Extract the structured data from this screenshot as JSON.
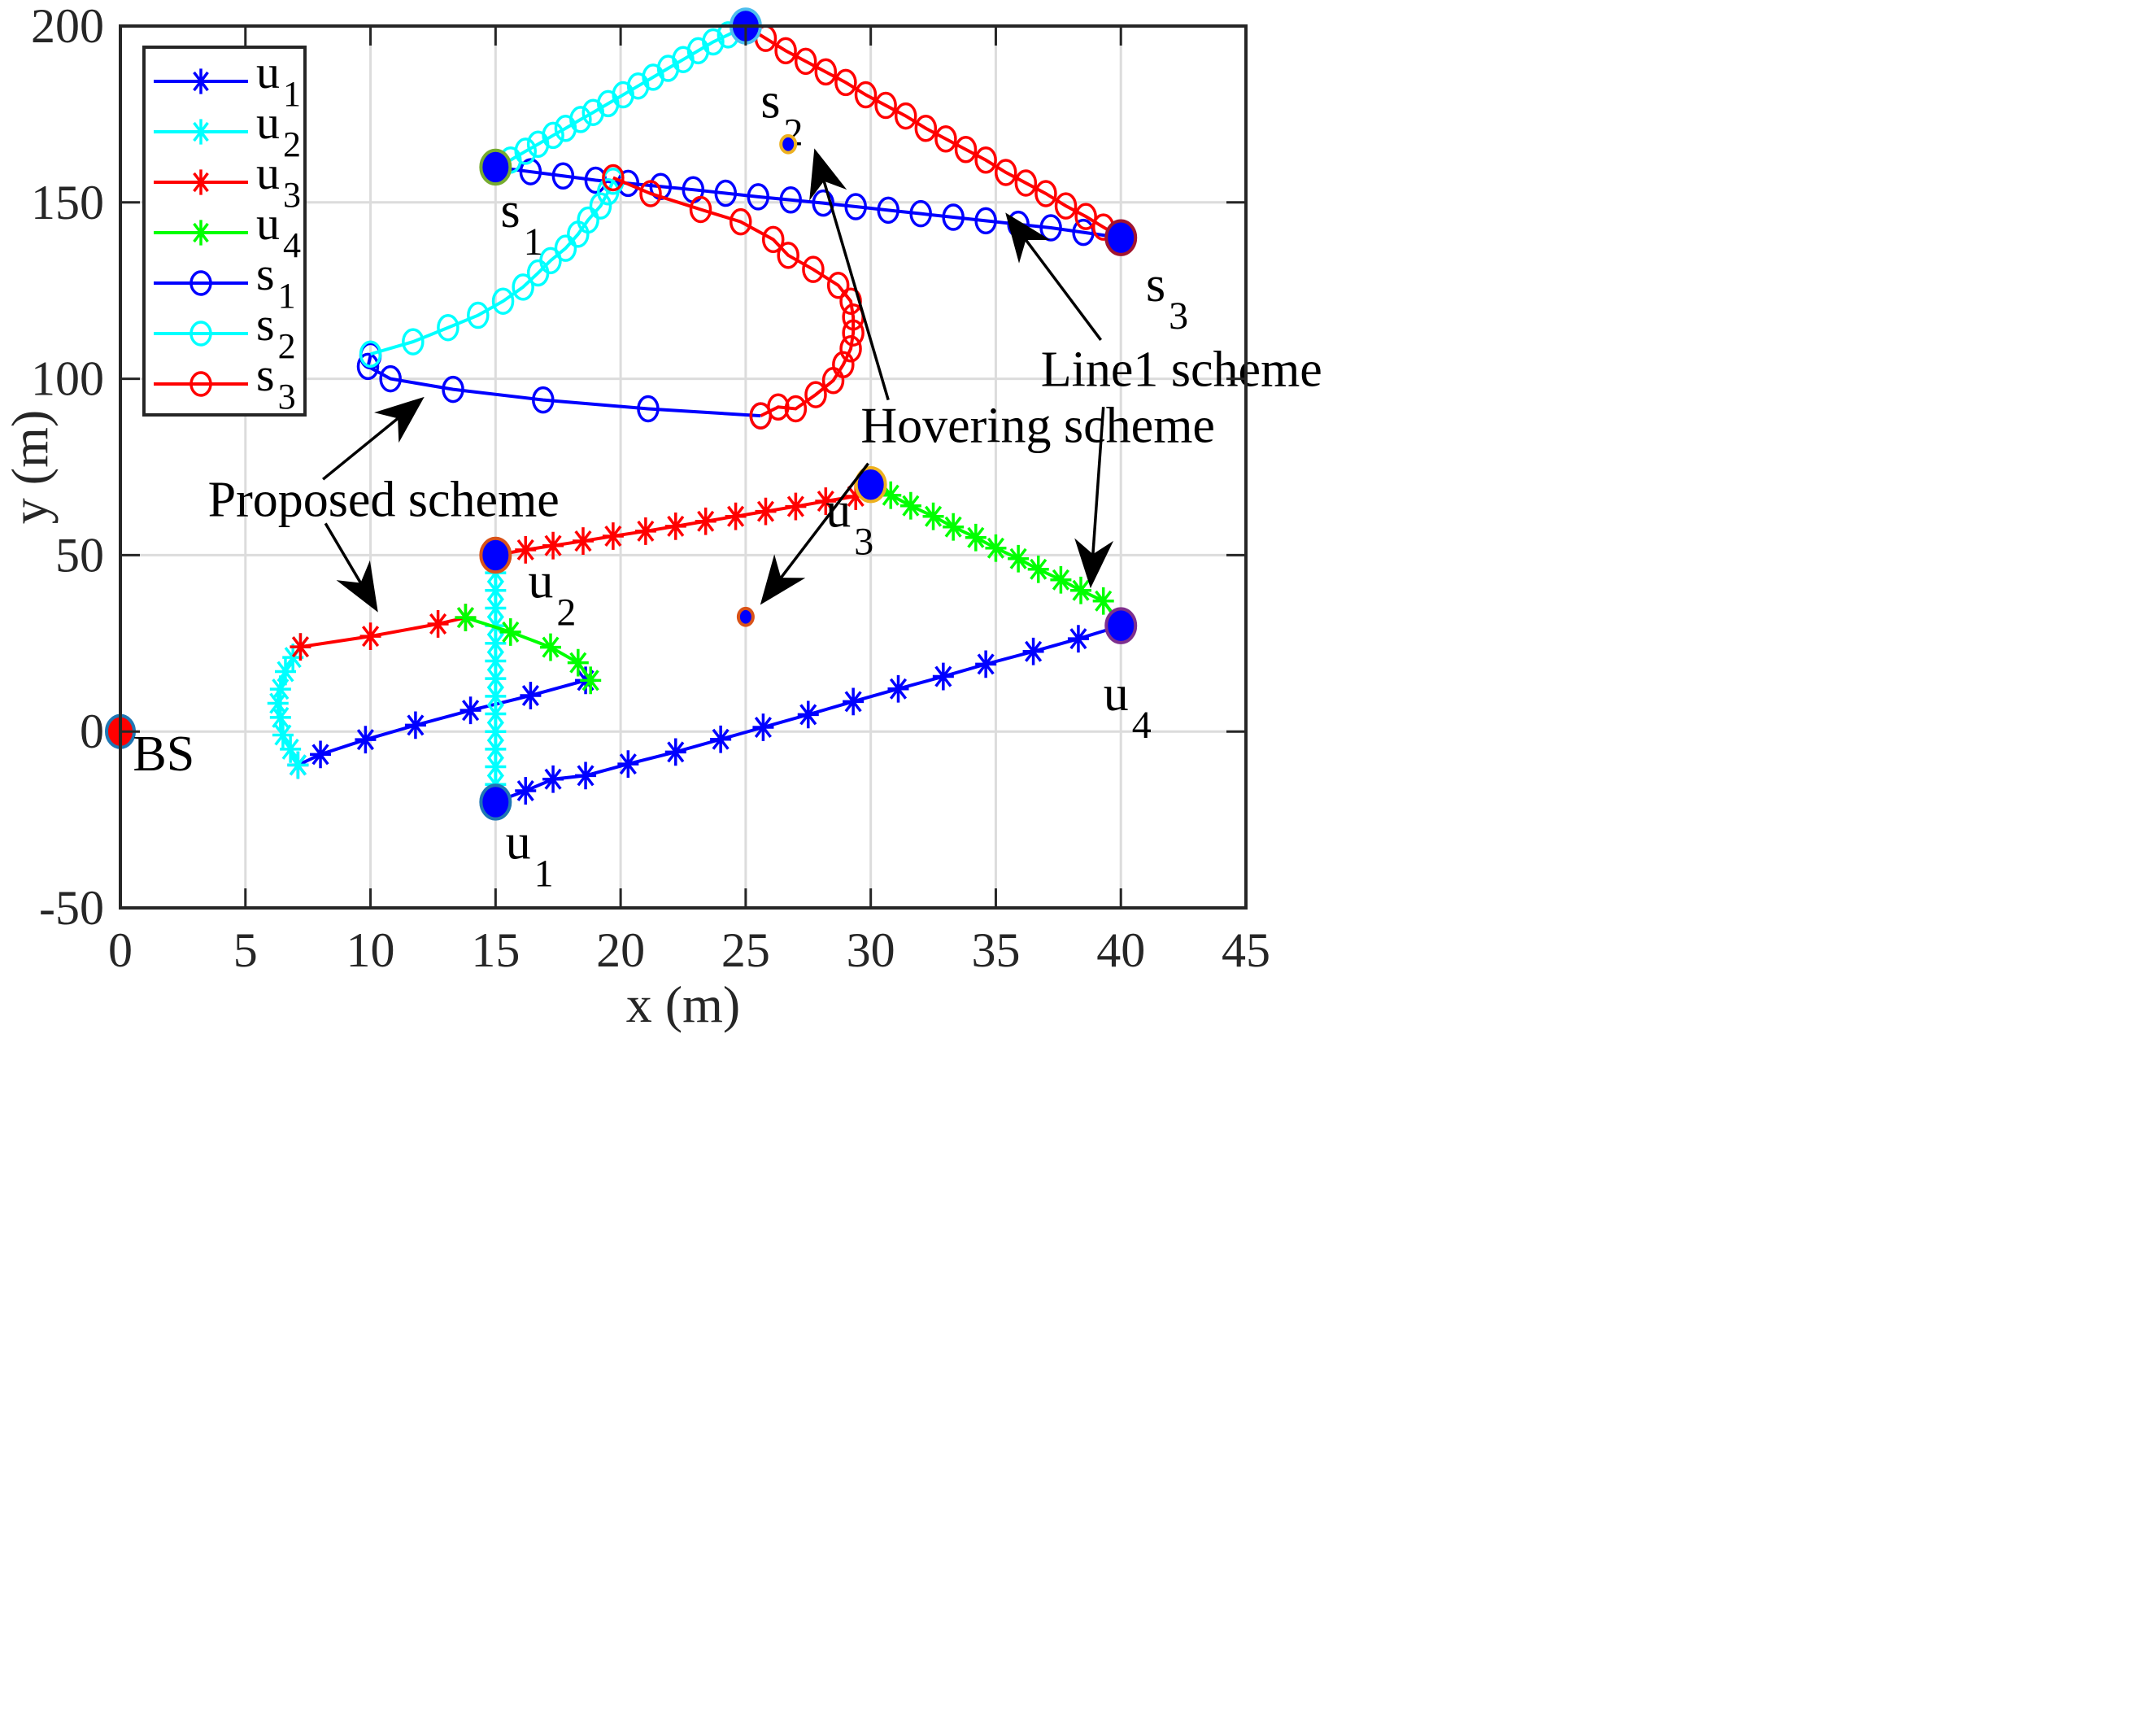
{
  "chart_data": {
    "type": "line",
    "title": "",
    "xlabel": "x (m)",
    "ylabel": "y (m)",
    "xlim": [
      0,
      45
    ],
    "ylim": [
      -50,
      200
    ],
    "xticks": [
      0,
      5,
      10,
      15,
      20,
      25,
      30,
      35,
      40,
      45
    ],
    "yticks": [
      -50,
      0,
      50,
      100,
      150,
      200
    ],
    "grid": true,
    "legend": {
      "position": "upper-left",
      "entries": [
        {
          "label": "u",
          "sub": "1",
          "color": "#0000ff",
          "marker": "star"
        },
        {
          "label": "u",
          "sub": "2",
          "color": "#00ffff",
          "marker": "star"
        },
        {
          "label": "u",
          "sub": "3",
          "color": "#ff0000",
          "marker": "star"
        },
        {
          "label": "u",
          "sub": "4",
          "color": "#00ff00",
          "marker": "star"
        },
        {
          "label": "s",
          "sub": "1",
          "color": "#0000ff",
          "marker": "circle"
        },
        {
          "label": "s",
          "sub": "2",
          "color": "#00ffff",
          "marker": "circle"
        },
        {
          "label": "s",
          "sub": "3",
          "color": "#ff0000",
          "marker": "circle"
        }
      ]
    },
    "series": [
      {
        "name": "u1 (Line1 scheme)",
        "color": "#0000ff",
        "marker": "star",
        "points": [
          [
            15,
            -20
          ],
          [
            16.2,
            -16.8
          ],
          [
            17.3,
            -13.5
          ],
          [
            18.6,
            -12.5
          ],
          [
            20.3,
            -9.2
          ],
          [
            22.2,
            -5.8
          ],
          [
            24,
            -2.2
          ],
          [
            25.7,
            1.2
          ],
          [
            27.5,
            4.8
          ],
          [
            29.3,
            8.5
          ],
          [
            31.1,
            12.1
          ],
          [
            32.9,
            15.6
          ],
          [
            34.6,
            19.1
          ],
          [
            36.5,
            22.7
          ],
          [
            38.3,
            26.3
          ],
          [
            40,
            30
          ]
        ]
      },
      {
        "name": "u1 (Proposed scheme)",
        "color": "#0000ff",
        "marker": "star",
        "points": [
          [
            7.1,
            -9.5
          ],
          [
            8,
            -6.5
          ],
          [
            9.8,
            -2.3
          ],
          [
            11.8,
            1.8
          ],
          [
            14,
            6
          ],
          [
            16.4,
            10.2
          ],
          [
            18.6,
            14.5
          ]
        ]
      },
      {
        "name": "u2 (Line1 scheme)",
        "color": "#00ffff",
        "marker": "star",
        "points": [
          [
            15,
            50
          ],
          [
            15,
            45
          ],
          [
            15,
            40
          ],
          [
            15,
            35
          ],
          [
            15,
            30
          ],
          [
            15,
            25
          ],
          [
            15,
            20
          ],
          [
            15,
            15
          ],
          [
            15,
            10
          ],
          [
            15,
            5
          ],
          [
            15,
            0
          ],
          [
            15,
            -5
          ],
          [
            15,
            -10
          ],
          [
            15,
            -15
          ],
          [
            15,
            -20
          ]
        ]
      },
      {
        "name": "u2 (Proposed scheme)",
        "color": "#00ffff",
        "marker": "star",
        "points": [
          [
            7.2,
            24
          ],
          [
            6.9,
            21
          ],
          [
            6.6,
            17
          ],
          [
            6.4,
            12
          ],
          [
            6.3,
            8
          ],
          [
            6.4,
            4
          ],
          [
            6.5,
            -1
          ],
          [
            6.8,
            -5
          ],
          [
            7.1,
            -9.5
          ]
        ]
      },
      {
        "name": "u3 (Line1 scheme)",
        "color": "#ff0000",
        "marker": "star",
        "points": [
          [
            15,
            50
          ],
          [
            16.2,
            51.5
          ],
          [
            17.3,
            52.7
          ],
          [
            18.5,
            54
          ],
          [
            19.7,
            55.4
          ],
          [
            21,
            56.8
          ],
          [
            22.2,
            58.2
          ],
          [
            23.4,
            59.6
          ],
          [
            24.6,
            61
          ],
          [
            25.8,
            62.4
          ],
          [
            27,
            63.8
          ],
          [
            28.2,
            65.3
          ],
          [
            29.4,
            66.7
          ],
          [
            30,
            70
          ]
        ]
      },
      {
        "name": "u3 (Proposed scheme)",
        "color": "#ff0000",
        "marker": "star",
        "points": [
          [
            7.2,
            24
          ],
          [
            10,
            27
          ],
          [
            12.7,
            30.5
          ],
          [
            13.8,
            32.3
          ]
        ]
      },
      {
        "name": "u4 (Line1 scheme)",
        "color": "#00ff00",
        "marker": "star",
        "points": [
          [
            30,
            70
          ],
          [
            30.8,
            67
          ],
          [
            31.6,
            64
          ],
          [
            32.5,
            61
          ],
          [
            33.3,
            58
          ],
          [
            34.2,
            55
          ],
          [
            35,
            52
          ],
          [
            35.9,
            49
          ],
          [
            36.7,
            46
          ],
          [
            37.6,
            43
          ],
          [
            38.4,
            40
          ],
          [
            39.3,
            37
          ],
          [
            40,
            30
          ]
        ]
      },
      {
        "name": "u4 (Proposed scheme)",
        "color": "#00ff00",
        "marker": "star",
        "points": [
          [
            13.8,
            32.3
          ],
          [
            15.6,
            28.2
          ],
          [
            17.2,
            23.9
          ],
          [
            18.3,
            19.5
          ],
          [
            18.8,
            14.5
          ]
        ]
      },
      {
        "name": "s1 (Line1 scheme)",
        "color": "#0000ff",
        "marker": "circle",
        "points": [
          [
            15,
            160
          ],
          [
            16.4,
            158.7
          ],
          [
            17.7,
            157.5
          ],
          [
            19,
            156.3
          ],
          [
            20.3,
            155.4
          ],
          [
            21.6,
            154.5
          ],
          [
            22.9,
            153.6
          ],
          [
            24.2,
            152.6
          ],
          [
            25.5,
            151.6
          ],
          [
            26.8,
            150.7
          ],
          [
            28.1,
            149.8
          ],
          [
            29.4,
            148.8
          ],
          [
            30.7,
            147.8
          ],
          [
            32,
            146.8
          ],
          [
            33.3,
            145.8
          ],
          [
            34.6,
            144.8
          ],
          [
            35.9,
            143.8
          ],
          [
            37.2,
            142.8
          ],
          [
            38.5,
            141.5
          ],
          [
            40,
            140
          ]
        ]
      },
      {
        "name": "s1 (Proposed scheme)",
        "color": "#0000ff",
        "marker": "circle",
        "points": [
          [
            10,
            106.5
          ],
          [
            9.9,
            103.5
          ],
          [
            10.8,
            100
          ],
          [
            13.3,
            97
          ],
          [
            16.9,
            94
          ],
          [
            21.1,
            91.5
          ],
          [
            25.6,
            89.5
          ]
        ]
      },
      {
        "name": "s2 (Line1 scheme)",
        "color": "#00ffff",
        "marker": "circle",
        "points": [
          [
            15,
            160
          ],
          [
            15.6,
            162
          ],
          [
            16.2,
            164.5
          ],
          [
            16.7,
            166.5
          ],
          [
            17.3,
            169
          ],
          [
            17.8,
            171
          ],
          [
            18.4,
            173.5
          ],
          [
            18.9,
            175.5
          ],
          [
            19.5,
            178
          ],
          [
            20.1,
            180.5
          ],
          [
            20.7,
            183
          ],
          [
            21.3,
            185.5
          ],
          [
            21.9,
            188
          ],
          [
            22.5,
            190.5
          ],
          [
            23.1,
            193
          ],
          [
            23.7,
            195.5
          ],
          [
            24.3,
            197.5
          ],
          [
            25,
            200
          ]
        ]
      },
      {
        "name": "s2 (Proposed scheme)",
        "color": "#00ffff",
        "marker": "circle",
        "points": [
          [
            10,
            107
          ],
          [
            11.7,
            110.5
          ],
          [
            13.1,
            114.5
          ],
          [
            14.3,
            118
          ],
          [
            15.3,
            122
          ],
          [
            16.1,
            126
          ],
          [
            16.7,
            130
          ],
          [
            17.2,
            133.5
          ],
          [
            17.8,
            137
          ],
          [
            18.3,
            141
          ],
          [
            18.7,
            145
          ],
          [
            19.2,
            149
          ],
          [
            19.5,
            153
          ],
          [
            19.7,
            156
          ]
        ]
      },
      {
        "name": "s3 (Line1 scheme)",
        "color": "#ff0000",
        "marker": "circle",
        "points": [
          [
            25,
            200
          ],
          [
            25.8,
            196.5
          ],
          [
            26.6,
            193
          ],
          [
            27.4,
            190
          ],
          [
            28.2,
            187
          ],
          [
            29,
            184
          ],
          [
            29.8,
            180.5
          ],
          [
            30.6,
            177.5
          ],
          [
            31.4,
            174.5
          ],
          [
            32.2,
            171
          ],
          [
            33,
            168
          ],
          [
            33.8,
            165
          ],
          [
            34.6,
            162
          ],
          [
            35.4,
            158.5
          ],
          [
            36.2,
            155.5
          ],
          [
            37,
            152.5
          ],
          [
            37.8,
            149
          ],
          [
            38.6,
            146
          ],
          [
            39.3,
            143
          ],
          [
            40,
            140
          ]
        ]
      },
      {
        "name": "s3 (Proposed scheme)",
        "color": "#ff0000",
        "marker": "circle",
        "points": [
          [
            19.7,
            157
          ],
          [
            21.2,
            152.5
          ],
          [
            23.2,
            148
          ],
          [
            24.8,
            144.5
          ],
          [
            26.1,
            139.5
          ],
          [
            26.7,
            135
          ],
          [
            27.7,
            131
          ],
          [
            28.7,
            126.5
          ],
          [
            29.2,
            122
          ],
          [
            29.3,
            117.5
          ],
          [
            29.3,
            113
          ],
          [
            29.2,
            108.5
          ],
          [
            28.9,
            104
          ],
          [
            28.5,
            99.5
          ],
          [
            27.8,
            95.5
          ],
          [
            27,
            91.5
          ],
          [
            26.3,
            92
          ],
          [
            25.6,
            89.5
          ]
        ]
      }
    ],
    "key_points": [
      {
        "name": "BS",
        "x": 0,
        "y": 0,
        "fill": "#ff0000",
        "edge": "#1f77b4",
        "r": 17,
        "label": "BS",
        "label_sub": "",
        "lx": 0.5,
        "ly": -11
      },
      {
        "name": "u1",
        "x": 15,
        "y": -20,
        "fill": "#0000ff",
        "edge": "#1f77b4",
        "r": 18,
        "label": "u",
        "label_sub": "1",
        "lx": 15.4,
        "ly": -36
      },
      {
        "name": "u2",
        "x": 15,
        "y": 50,
        "fill": "#0000ff",
        "edge": "#d95319",
        "r": 18,
        "label": "u",
        "label_sub": "2",
        "lx": 16.3,
        "ly": 38
      },
      {
        "name": "u3",
        "x": 30,
        "y": 70,
        "fill": "#0000ff",
        "edge": "#edb120",
        "r": 18,
        "label": "u",
        "label_sub": "3",
        "lx": 28.2,
        "ly": 58
      },
      {
        "name": "u4",
        "x": 40,
        "y": 30,
        "fill": "#0000ff",
        "edge": "#7e2f8e",
        "r": 18,
        "label": "u",
        "label_sub": "4",
        "lx": 39.3,
        "ly": 6
      },
      {
        "name": "s1",
        "x": 15,
        "y": 160,
        "fill": "#0000ff",
        "edge": "#77ac30",
        "r": 18,
        "label": "s",
        "label_sub": "1",
        "lx": 15.2,
        "ly": 143
      },
      {
        "name": "s2",
        "x": 25,
        "y": 200,
        "fill": "#0000ff",
        "edge": "#4dbeee",
        "r": 18,
        "label": "s",
        "label_sub": "2",
        "lx": 25.6,
        "ly": 174
      },
      {
        "name": "s3",
        "x": 40,
        "y": 140,
        "fill": "#0000ff",
        "edge": "#a2142f",
        "r": 18,
        "label": "s",
        "label_sub": "3",
        "lx": 41,
        "ly": 122
      },
      {
        "name": "hover-s2",
        "x": 26.7,
        "y": 166.5,
        "fill": "#0000ff",
        "edge": "#edb120",
        "r": 9
      },
      {
        "name": "hover-u3",
        "x": 25,
        "y": 32.5,
        "fill": "#0000ff",
        "edge": "#d95319",
        "r": 9
      }
    ],
    "annotations": [
      {
        "text": "Proposed scheme",
        "x": 3.5,
        "y": 61,
        "arrows": [
          [
            8.1,
            71.5,
            12,
            94
          ],
          [
            8.2,
            59,
            10.2,
            35
          ]
        ]
      },
      {
        "text": "Hovering scheme",
        "x": 29.6,
        "y": 82,
        "arrows": [
          [
            30.7,
            94,
            27.8,
            164
          ],
          [
            29.9,
            76,
            25.7,
            37
          ]
        ]
      },
      {
        "text": "Line1 scheme",
        "x": 36.8,
        "y": 98,
        "arrows": [
          [
            39.2,
            111,
            35.5,
            146
          ],
          [
            39.3,
            92,
            38.8,
            42
          ]
        ]
      }
    ]
  }
}
